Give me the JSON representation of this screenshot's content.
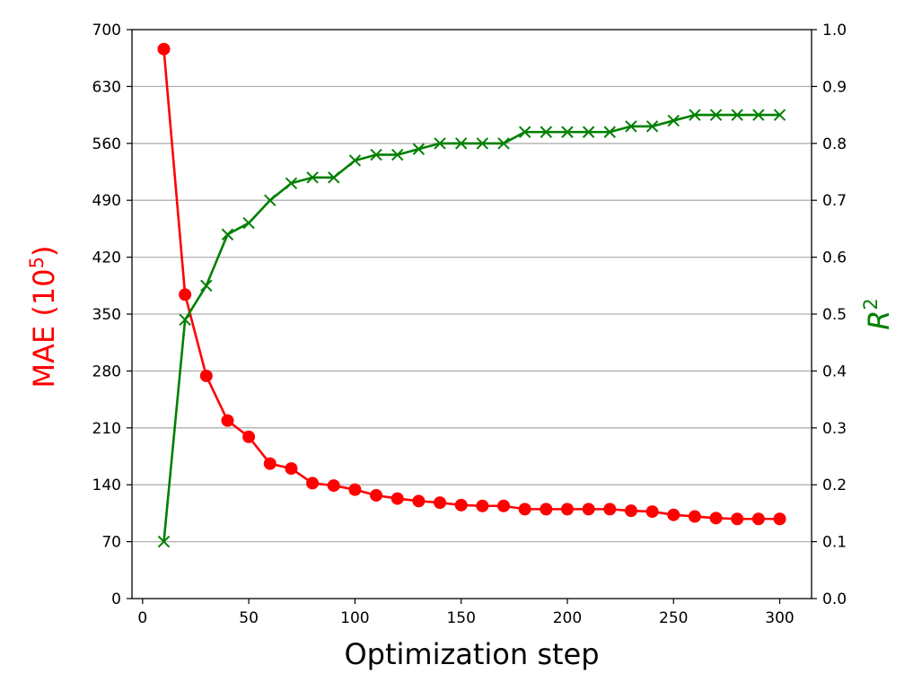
{
  "chart_data": {
    "type": "line",
    "xlabel": "Optimization step",
    "ylabel_left": {
      "text": "MAE (10",
      "sup": "5",
      "close": ")",
      "color": "#ff0000"
    },
    "ylabel_right": {
      "text": "R",
      "sup": "2",
      "color": "#008000"
    },
    "xlim": [
      -5,
      315
    ],
    "ylim_left": [
      0,
      700
    ],
    "ylim_right": [
      0.0,
      1.0
    ],
    "xticks": [
      0,
      50,
      100,
      150,
      200,
      250,
      300
    ],
    "yticks_left": [
      0,
      70,
      140,
      210,
      280,
      350,
      420,
      490,
      560,
      630,
      700
    ],
    "yticks_right": [
      "0.0",
      "0.1",
      "0.2",
      "0.3",
      "0.4",
      "0.5",
      "0.6",
      "0.7",
      "0.8",
      "0.9",
      "1.0"
    ],
    "grid": "horizontal",
    "x": [
      10,
      20,
      30,
      40,
      50,
      60,
      70,
      80,
      90,
      100,
      110,
      120,
      130,
      140,
      150,
      160,
      170,
      180,
      190,
      200,
      210,
      220,
      230,
      240,
      250,
      260,
      270,
      280,
      290,
      300
    ],
    "series": [
      {
        "axis": "left",
        "color": "#ff0000",
        "marker": "circle",
        "values": [
          676,
          374,
          274,
          219,
          199,
          166,
          160,
          142,
          139,
          134,
          127,
          123,
          120,
          118,
          115,
          114,
          114,
          110,
          110,
          110,
          110,
          110,
          108,
          107,
          103,
          101,
          99,
          98,
          98,
          98
        ]
      },
      {
        "axis": "right",
        "color": "#008000",
        "marker": "x",
        "values": [
          0.1,
          0.49,
          0.55,
          0.64,
          0.66,
          0.7,
          0.73,
          0.74,
          0.74,
          0.77,
          0.78,
          0.78,
          0.79,
          0.8,
          0.8,
          0.8,
          0.8,
          0.82,
          0.82,
          0.82,
          0.82,
          0.82,
          0.83,
          0.83,
          0.84,
          0.85,
          0.85,
          0.85,
          0.85,
          0.85
        ]
      }
    ]
  }
}
